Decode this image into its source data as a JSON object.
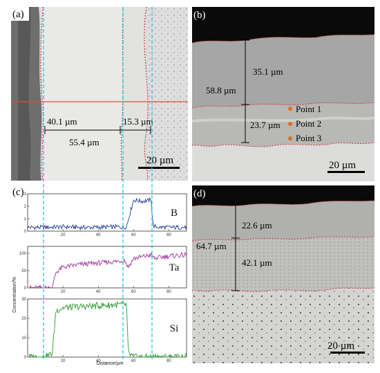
{
  "panel_a": {
    "label": "(a)",
    "measure_1": "40.1 µm",
    "measure_2": "15.3 µm",
    "measure_3": "55.4 µm",
    "scale": "20 µm"
  },
  "panel_b": {
    "label": "(b)",
    "measure_top": "35.1 µm",
    "measure_total": "58.8 µm",
    "measure_bottom": "23.7 µm",
    "points": [
      "Point 1",
      "Point 2",
      "Point 3"
    ],
    "scale": "20 µm",
    "point_color": "#e07020"
  },
  "panel_d": {
    "label": "(d)",
    "measure_top": "22.6 µm",
    "measure_total": "64.7 µm",
    "measure_bottom": "42.1 µm",
    "scale": "20 µm"
  },
  "panel_c": {
    "label": "(c)",
    "ylabel": "Concentration/%",
    "xlabel": "Distance/µm",
    "x_ticks": [
      "20",
      "40",
      "60",
      "80"
    ]
  },
  "chart_data": {
    "type": "line",
    "xlabel": "Distance/µm",
    "ylabel": "Concentration/%",
    "xlim": [
      0,
      90
    ],
    "series": [
      {
        "name": "B",
        "color": "#1f3f9a",
        "ylim": [
          0,
          3
        ],
        "y_ticks": [
          0,
          1,
          2,
          3
        ],
        "x": [
          0,
          10,
          20,
          30,
          40,
          50,
          55,
          56,
          60,
          65,
          70,
          71,
          75,
          80,
          90
        ],
        "values": [
          0.3,
          0.3,
          0.35,
          0.3,
          0.3,
          0.35,
          0.3,
          0.4,
          2.5,
          2.4,
          2.5,
          0.4,
          0.3,
          0.3,
          0.3
        ]
      },
      {
        "name": "Ta",
        "color": "#a0309a",
        "ylim": [
          0,
          120
        ],
        "y_ticks": [
          0,
          50,
          100
        ],
        "x": [
          0,
          10,
          14,
          16,
          20,
          30,
          40,
          50,
          55,
          57,
          60,
          65,
          70,
          72,
          75,
          80,
          90
        ],
        "values": [
          0,
          0,
          0,
          45,
          60,
          68,
          72,
          76,
          80,
          60,
          85,
          90,
          95,
          85,
          88,
          92,
          95
        ]
      },
      {
        "name": "Si",
        "color": "#2a9a2a",
        "ylim": [
          0,
          30
        ],
        "y_ticks": [
          0,
          10,
          20,
          30
        ],
        "x": [
          0,
          10,
          14,
          16,
          20,
          30,
          40,
          50,
          56,
          57,
          60,
          70,
          80,
          90
        ],
        "values": [
          0,
          0,
          2,
          24,
          25.5,
          26,
          26.5,
          27,
          27,
          2,
          0,
          0,
          0,
          0
        ]
      }
    ]
  }
}
